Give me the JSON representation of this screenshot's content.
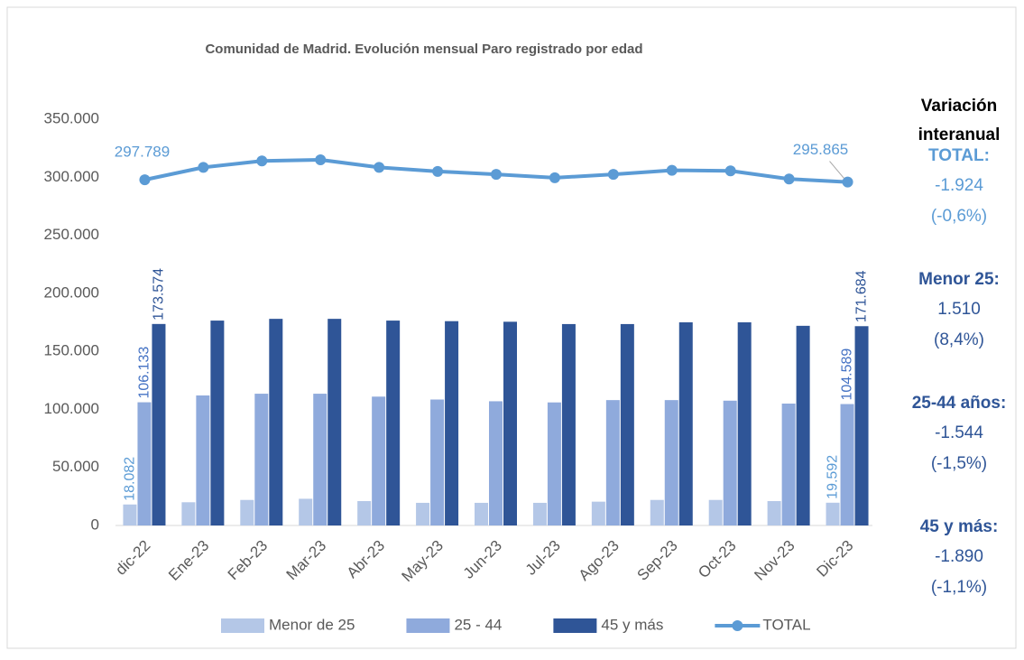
{
  "chart_data": {
    "type": "bar_line",
    "title": "Comunidad de Madrid. Evolución mensual Paro registrado por edad",
    "categories": [
      "dic-22",
      "Ene-23",
      "Feb-23",
      "Mar-23",
      "Abr-23",
      "May-23",
      "Jun-23",
      "Jul-23",
      "Ago-23",
      "Sep-23",
      "Oct-23",
      "Nov-23",
      "Dic-23"
    ],
    "series": [
      {
        "name": "Menor de 25",
        "color": "#b4c7e7",
        "kind": "bar",
        "values": [
          18082,
          20000,
          22000,
          23000,
          21000,
          19500,
          19500,
          19500,
          20500,
          22000,
          22000,
          21000,
          19592
        ],
        "value_labels": [
          "18.082",
          null,
          null,
          null,
          null,
          null,
          null,
          null,
          null,
          null,
          null,
          null,
          "19.592"
        ]
      },
      {
        "name": "25 - 44",
        "color": "#8faadc",
        "kind": "bar",
        "values": [
          106133,
          112000,
          113500,
          113500,
          111000,
          108500,
          107000,
          106000,
          108000,
          108000,
          107500,
          105000,
          104589
        ],
        "value_labels": [
          "106.133",
          null,
          null,
          null,
          null,
          null,
          null,
          null,
          null,
          null,
          null,
          null,
          "104.589"
        ]
      },
      {
        "name": "45 y más",
        "color": "#2f5597",
        "kind": "bar",
        "values": [
          173574,
          176500,
          178000,
          178000,
          176500,
          176000,
          175500,
          173500,
          173500,
          175000,
          175000,
          172000,
          171684
        ],
        "value_labels": [
          "173.574",
          null,
          null,
          null,
          null,
          null,
          null,
          null,
          null,
          null,
          null,
          null,
          "171.684"
        ]
      },
      {
        "name": "TOTAL",
        "color": "#5b9bd5",
        "kind": "line",
        "values": [
          297789,
          308500,
          314000,
          315000,
          308500,
          305000,
          302500,
          299500,
          302500,
          306000,
          305500,
          298500,
          295865
        ],
        "value_labels": [
          "297.789",
          null,
          null,
          null,
          null,
          null,
          null,
          null,
          null,
          null,
          null,
          null,
          "295.865"
        ]
      }
    ],
    "ylim": [
      0,
      350000
    ],
    "yticks": [
      0,
      {
        "value": 50000,
        "label": "50.000"
      },
      {
        "value": 100000,
        "label": "100.000"
      },
      {
        "value": 150000,
        "label": "150.000"
      },
      {
        "value": 200000,
        "label": "200.000"
      },
      {
        "value": 250000,
        "label": "250.000"
      },
      {
        "value": 300000,
        "label": "300.000"
      },
      {
        "value": 350000,
        "label": "350.000"
      }
    ],
    "legend": "bottom",
    "side_panel": {
      "title": [
        "Variación",
        "interanual"
      ],
      "items": [
        {
          "label": "TOTAL:",
          "value": "-1.924",
          "percent": "(-0,6%)",
          "color": "#5b9bd5"
        },
        {
          "label": "Menor 25:",
          "value": "1.510",
          "percent": "(8,4%)",
          "color": "#2f5597"
        },
        {
          "label": "25-44 años:",
          "value": "-1.544",
          "percent": "(-1,5%)",
          "color": "#2f5597"
        },
        {
          "label": "45 y más:",
          "value": "-1.890",
          "percent": "(-1,1%)",
          "color": "#2f5597"
        }
      ]
    }
  }
}
